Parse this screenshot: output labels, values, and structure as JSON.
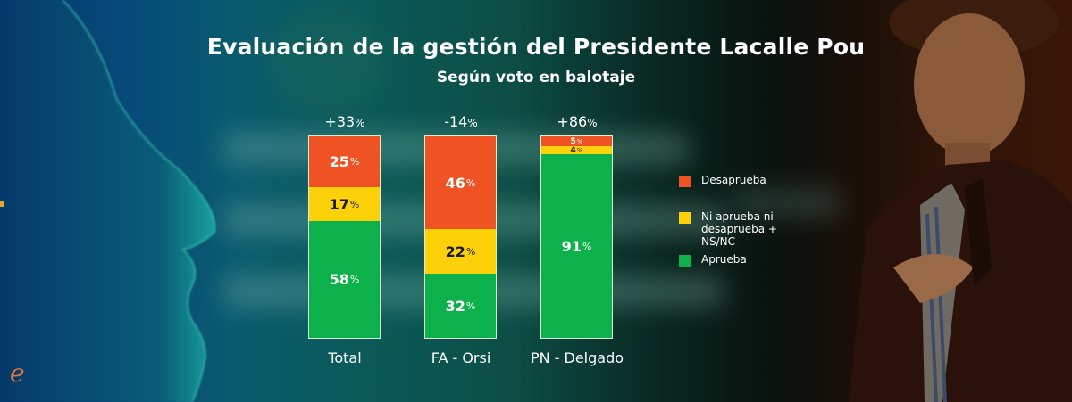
{
  "colors": {
    "desaprueba": "#f05323",
    "neutral": "#fdd10a",
    "aprueba": "#0db14b"
  },
  "logo": {
    "letter": "e",
    "icon": "e-logo"
  },
  "chart_data": {
    "type": "bar",
    "stacked": true,
    "title": "Evaluación de la gestión del Presidente Lacalle Pou",
    "subtitle": "Según voto en balotaje",
    "categories": [
      "Total",
      "FA - Orsi",
      "PN - Delgado"
    ],
    "net_labels": [
      "+33",
      "-14",
      "+86"
    ],
    "net_unit": "%",
    "series": [
      {
        "name": "Aprueba",
        "key": "aprueba",
        "values": [
          58,
          32,
          91
        ]
      },
      {
        "name": "Ni aprueba ni desaprueba + NS/NC",
        "key": "neutral",
        "values": [
          17,
          22,
          4
        ]
      },
      {
        "name": "Desaprueba",
        "key": "desaprueba",
        "values": [
          25,
          46,
          5
        ]
      }
    ],
    "unit": "%",
    "legend": {
      "position": "right",
      "items": [
        "Desaprueba",
        "Ni aprueba ni desaprueba + NS/NC",
        "Aprueba"
      ]
    },
    "ylim": [
      0,
      100
    ],
    "grid": false
  }
}
